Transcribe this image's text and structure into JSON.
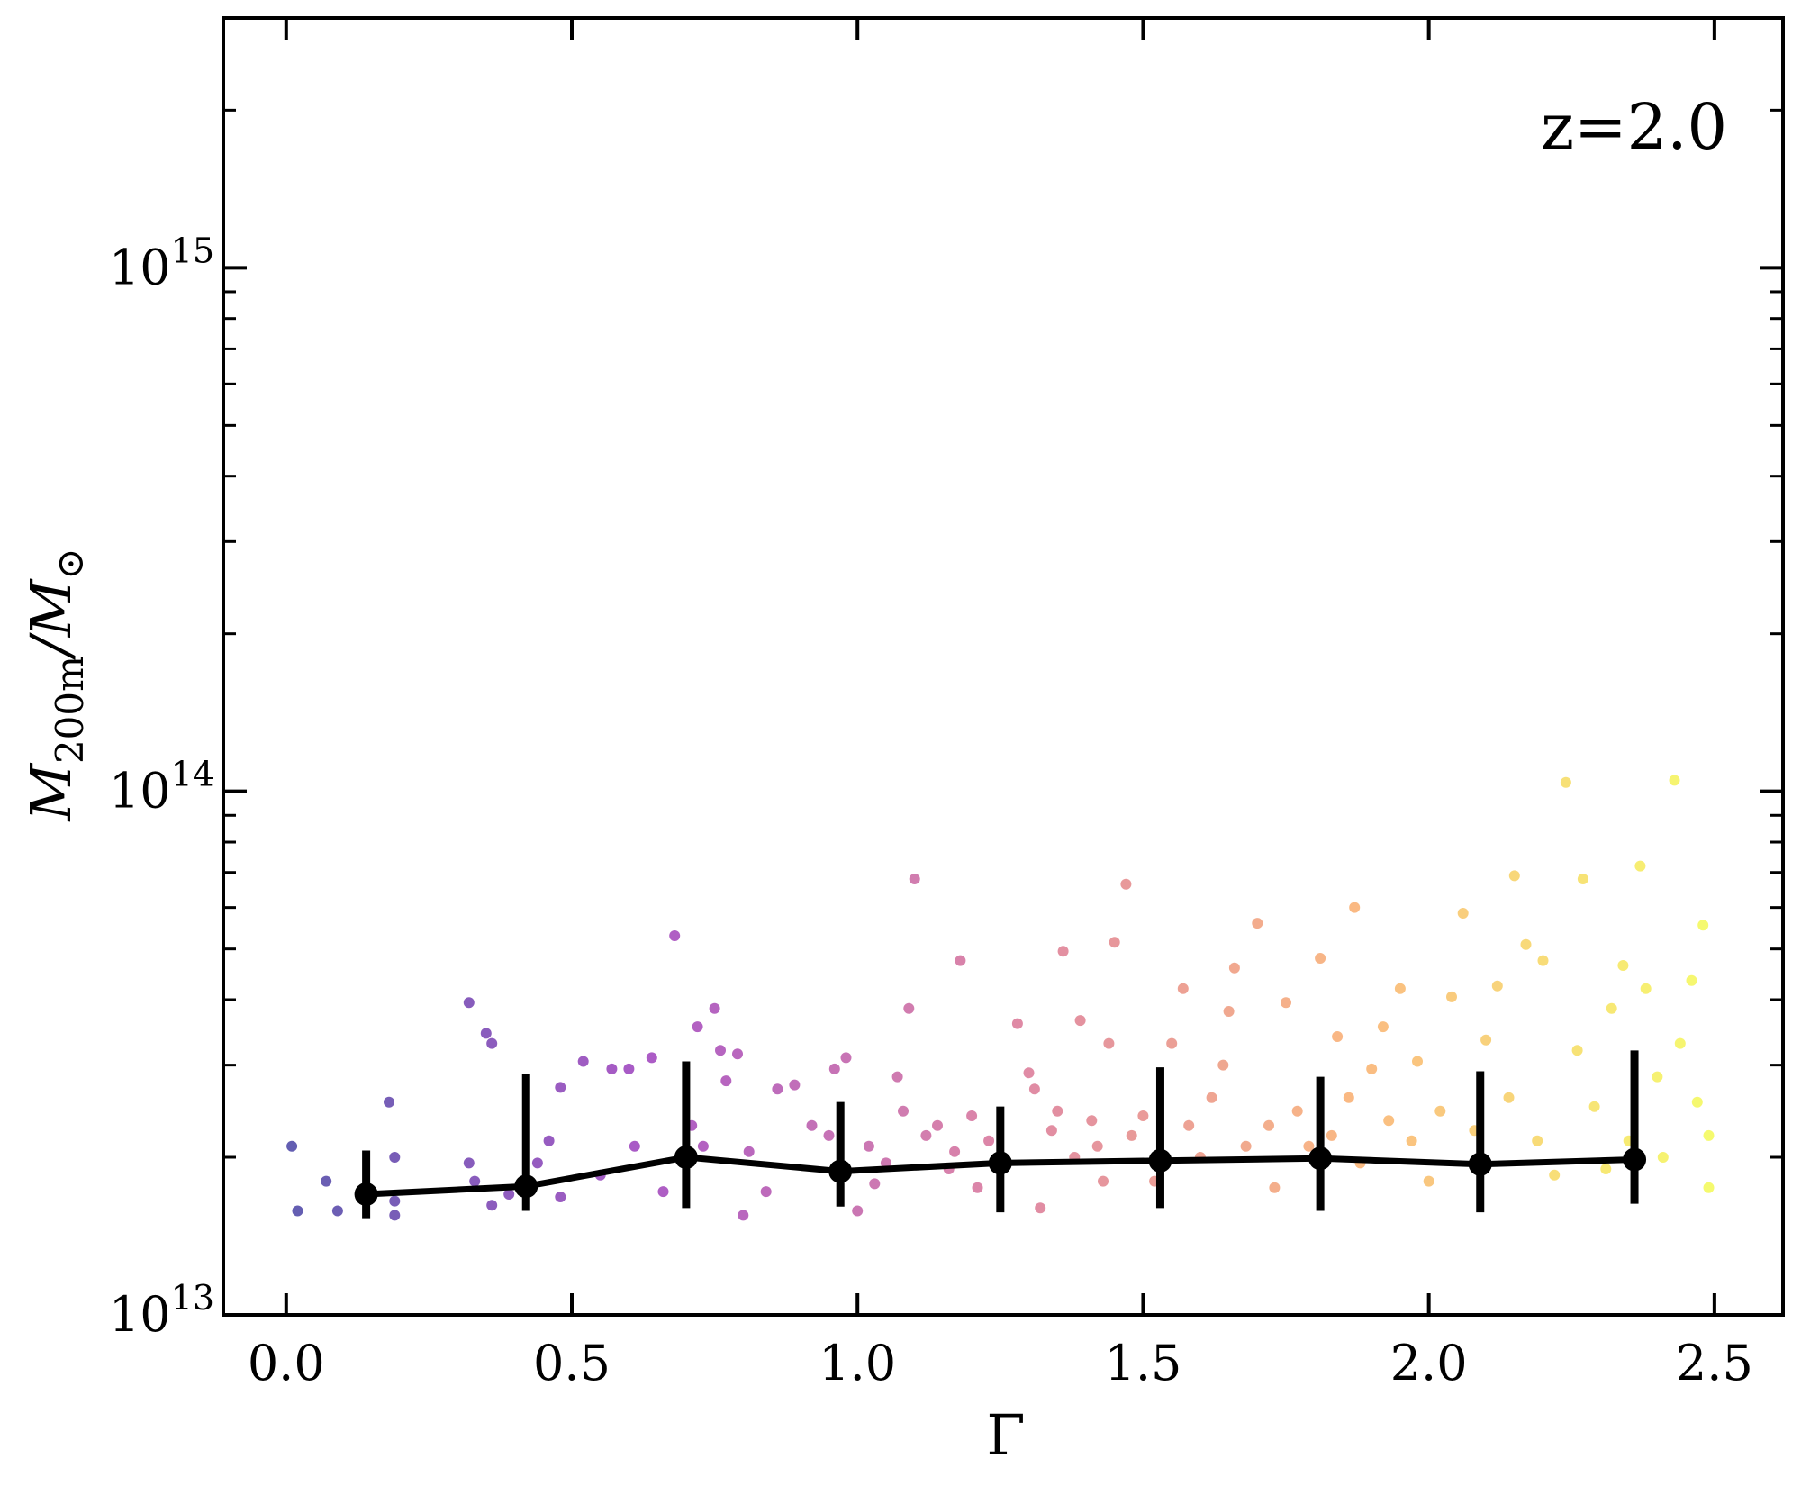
{
  "chart_data": {
    "type": "scatter",
    "title": "",
    "xlabel": "Γ",
    "ylabel": "M200m/M⊙",
    "ylabel_parts": {
      "main": "M",
      "sub": "200m",
      "sep": "/",
      "main2": "M",
      "sub2": "⊙"
    },
    "annotation": "z=2.0",
    "xlim": [
      -0.11,
      2.62
    ],
    "ylim": [
      10000000000000.0,
      3000000000000000.0
    ],
    "yscale": "log",
    "grid": false,
    "legend": "none",
    "colormap": "plasma",
    "x_ticks": [
      {
        "value": 0.0,
        "label": "0.0"
      },
      {
        "value": 0.5,
        "label": "0.5"
      },
      {
        "value": 1.0,
        "label": "1.0"
      },
      {
        "value": 1.5,
        "label": "1.5"
      },
      {
        "value": 2.0,
        "label": "2.0"
      },
      {
        "value": 2.5,
        "label": "2.5"
      }
    ],
    "y_ticks": [
      {
        "value": 10000000000000.0,
        "base": "10",
        "exp": "13"
      },
      {
        "value": 100000000000000.0,
        "base": "10",
        "exp": "14"
      },
      {
        "value": 1000000000000000.0,
        "base": "10",
        "exp": "15"
      }
    ],
    "binned_median": {
      "x": [
        0.14,
        0.42,
        0.7,
        0.97,
        1.25,
        1.53,
        1.81,
        2.09,
        2.36
      ],
      "y": [
        17000000000000.0,
        17600000000000.0,
        20000000000000.0,
        18800000000000.0,
        19500000000000.0,
        19700000000000.0,
        19900000000000.0,
        19400000000000.0,
        19800000000000.0
      ],
      "err_low": [
        15300000000000.0,
        15800000000000.0,
        16000000000000.0,
        16100000000000.0,
        15700000000000.0,
        16000000000000.0,
        15800000000000.0,
        15700000000000.0,
        16300000000000.0
      ],
      "err_high": [
        20600000000000.0,
        28800000000000.0,
        30500000000000.0,
        25500000000000.0,
        25000000000000.0,
        29700000000000.0,
        28500000000000.0,
        29200000000000.0,
        32000000000000.0
      ]
    },
    "scatter_points": [
      [
        0.01,
        21000000000000.0
      ],
      [
        0.02,
        15800000000000.0
      ],
      [
        0.07,
        18000000000000.0
      ],
      [
        0.09,
        15800000000000.0
      ],
      [
        0.18,
        25500000000000.0
      ],
      [
        0.19,
        20000000000000.0
      ],
      [
        0.19,
        15500000000000.0
      ],
      [
        0.19,
        16500000000000.0
      ],
      [
        0.32,
        39500000000000.0
      ],
      [
        0.32,
        19500000000000.0
      ],
      [
        0.33,
        18000000000000.0
      ],
      [
        0.35,
        34500000000000.0
      ],
      [
        0.36,
        33000000000000.0
      ],
      [
        0.36,
        16200000000000.0
      ],
      [
        0.39,
        17000000000000.0
      ],
      [
        0.44,
        19500000000000.0
      ],
      [
        0.46,
        21500000000000.0
      ],
      [
        0.48,
        27200000000000.0
      ],
      [
        0.48,
        16800000000000.0
      ],
      [
        0.52,
        30500000000000.0
      ],
      [
        0.55,
        18500000000000.0
      ],
      [
        0.57,
        29500000000000.0
      ],
      [
        0.6,
        29500000000000.0
      ],
      [
        0.61,
        21000000000000.0
      ],
      [
        0.64,
        31000000000000.0
      ],
      [
        0.66,
        17200000000000.0
      ],
      [
        0.68,
        53000000000000.0
      ],
      [
        0.71,
        23000000000000.0
      ],
      [
        0.72,
        35500000000000.0
      ],
      [
        0.73,
        21000000000000.0
      ],
      [
        0.75,
        38500000000000.0
      ],
      [
        0.76,
        32000000000000.0
      ],
      [
        0.77,
        28000000000000.0
      ],
      [
        0.79,
        31500000000000.0
      ],
      [
        0.8,
        15500000000000.0
      ],
      [
        0.81,
        20500000000000.0
      ],
      [
        0.84,
        17200000000000.0
      ],
      [
        0.86,
        27000000000000.0
      ],
      [
        0.89,
        27500000000000.0
      ],
      [
        0.92,
        23000000000000.0
      ],
      [
        0.95,
        22000000000000.0
      ],
      [
        0.96,
        29500000000000.0
      ],
      [
        0.98,
        31000000000000.0
      ],
      [
        1.0,
        15800000000000.0
      ],
      [
        1.02,
        21000000000000.0
      ],
      [
        1.03,
        17800000000000.0
      ],
      [
        1.05,
        19500000000000.0
      ],
      [
        1.07,
        28500000000000.0
      ],
      [
        1.08,
        24500000000000.0
      ],
      [
        1.09,
        38500000000000.0
      ],
      [
        1.1,
        68000000000000.0
      ],
      [
        1.12,
        22000000000000.0
      ],
      [
        1.14,
        23000000000000.0
      ],
      [
        1.16,
        19000000000000.0
      ],
      [
        1.17,
        20500000000000.0
      ],
      [
        1.18,
        47500000000000.0
      ],
      [
        1.2,
        24000000000000.0
      ],
      [
        1.21,
        17500000000000.0
      ],
      [
        1.23,
        21500000000000.0
      ],
      [
        1.26,
        19500000000000.0
      ],
      [
        1.28,
        36000000000000.0
      ],
      [
        1.3,
        29000000000000.0
      ],
      [
        1.31,
        27000000000000.0
      ],
      [
        1.32,
        16000000000000.0
      ],
      [
        1.34,
        22500000000000.0
      ],
      [
        1.35,
        24500000000000.0
      ],
      [
        1.36,
        49500000000000.0
      ],
      [
        1.38,
        20000000000000.0
      ],
      [
        1.39,
        36500000000000.0
      ],
      [
        1.41,
        23500000000000.0
      ],
      [
        1.42,
        21000000000000.0
      ],
      [
        1.43,
        18000000000000.0
      ],
      [
        1.44,
        33000000000000.0
      ],
      [
        1.45,
        51500000000000.0
      ],
      [
        1.47,
        66500000000000.0
      ],
      [
        1.48,
        22000000000000.0
      ],
      [
        1.5,
        24000000000000.0
      ],
      [
        1.52,
        18000000000000.0
      ],
      [
        1.55,
        33000000000000.0
      ],
      [
        1.57,
        42000000000000.0
      ],
      [
        1.58,
        23000000000000.0
      ],
      [
        1.6,
        20000000000000.0
      ],
      [
        1.62,
        26000000000000.0
      ],
      [
        1.64,
        30000000000000.0
      ],
      [
        1.65,
        38000000000000.0
      ],
      [
        1.66,
        46000000000000.0
      ],
      [
        1.68,
        21000000000000.0
      ],
      [
        1.7,
        56000000000000.0
      ],
      [
        1.72,
        23000000000000.0
      ],
      [
        1.73,
        17500000000000.0
      ],
      [
        1.75,
        39500000000000.0
      ],
      [
        1.77,
        24500000000000.0
      ],
      [
        1.79,
        21000000000000.0
      ],
      [
        1.81,
        48000000000000.0
      ],
      [
        1.83,
        22000000000000.0
      ],
      [
        1.84,
        34000000000000.0
      ],
      [
        1.86,
        26000000000000.0
      ],
      [
        1.87,
        60000000000000.0
      ],
      [
        1.88,
        19500000000000.0
      ],
      [
        1.9,
        29500000000000.0
      ],
      [
        1.92,
        35500000000000.0
      ],
      [
        1.93,
        23500000000000.0
      ],
      [
        1.95,
        42000000000000.0
      ],
      [
        1.97,
        21500000000000.0
      ],
      [
        1.98,
        30500000000000.0
      ],
      [
        2.0,
        18000000000000.0
      ],
      [
        2.02,
        24500000000000.0
      ],
      [
        2.04,
        40500000000000.0
      ],
      [
        2.06,
        58500000000000.0
      ],
      [
        2.08,
        22500000000000.0
      ],
      [
        2.1,
        33500000000000.0
      ],
      [
        2.12,
        42500000000000.0
      ],
      [
        2.14,
        26000000000000.0
      ],
      [
        2.15,
        69000000000000.0
      ],
      [
        2.17,
        51000000000000.0
      ],
      [
        2.19,
        21500000000000.0
      ],
      [
        2.2,
        47500000000000.0
      ],
      [
        2.22,
        18500000000000.0
      ],
      [
        2.24,
        104000000000000.0
      ],
      [
        2.26,
        32000000000000.0
      ],
      [
        2.27,
        68000000000000.0
      ],
      [
        2.29,
        25000000000000.0
      ],
      [
        2.31,
        19000000000000.0
      ],
      [
        2.32,
        38500000000000.0
      ],
      [
        2.34,
        46500000000000.0
      ],
      [
        2.35,
        21500000000000.0
      ],
      [
        2.37,
        72000000000000.0
      ],
      [
        2.38,
        42000000000000.0
      ],
      [
        2.4,
        28500000000000.0
      ],
      [
        2.41,
        20000000000000.0
      ],
      [
        2.43,
        105000000000000.0
      ],
      [
        2.44,
        33000000000000.0
      ],
      [
        2.46,
        43500000000000.0
      ],
      [
        2.47,
        25500000000000.0
      ],
      [
        2.48,
        55500000000000.0
      ],
      [
        2.49,
        17500000000000.0
      ],
      [
        2.49,
        22000000000000.0
      ]
    ]
  }
}
